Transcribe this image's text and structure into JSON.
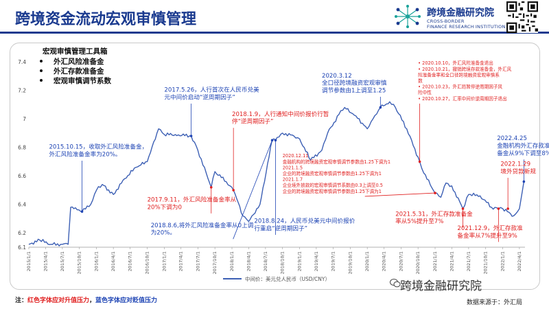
{
  "title": "跨境资金流动宏观审慎管理",
  "logo": {
    "name": "跨境金融研究院",
    "en_line1": "CROSS-BORDER",
    "en_line2": "FINANCE RESEARCH INSTITUTION"
  },
  "toolbox": {
    "heading": "宏观审慎管理工具箱",
    "items": [
      "外汇风险准备金",
      "外汇存款准备金",
      "宏观审慎调节系数"
    ]
  },
  "chart_data": {
    "type": "line",
    "series": [
      {
        "name": "中间价：美元兑人民币（USD/CNY）",
        "color": "#3c5fb4",
        "points": [
          [
            "2015-01-01",
            6.12
          ],
          [
            "2015-03-01",
            6.15
          ],
          [
            "2015-05-01",
            6.12
          ],
          [
            "2015-07-01",
            6.12
          ],
          [
            "2015-08-01",
            6.12
          ],
          [
            "2015-08-15",
            6.38
          ],
          [
            "2015-09-01",
            6.37
          ],
          [
            "2015-10-15",
            6.35
          ],
          [
            "2015-12-01",
            6.4
          ],
          [
            "2016-01-01",
            6.5
          ],
          [
            "2016-02-01",
            6.54
          ],
          [
            "2016-04-01",
            6.47
          ],
          [
            "2016-06-01",
            6.58
          ],
          [
            "2016-08-01",
            6.66
          ],
          [
            "2016-10-01",
            6.7
          ],
          [
            "2016-12-01",
            6.93
          ],
          [
            "2017-01-01",
            6.89
          ],
          [
            "2017-03-01",
            6.89
          ],
          [
            "2017-05-26",
            6.88
          ],
          [
            "2017-07-01",
            6.78
          ],
          [
            "2017-09-11",
            6.52
          ],
          [
            "2017-10-01",
            6.63
          ],
          [
            "2017-12-01",
            6.56
          ],
          [
            "2018-01-09",
            6.5
          ],
          [
            "2018-03-01",
            6.32
          ],
          [
            "2018-04-01",
            6.28
          ],
          [
            "2018-06-01",
            6.4
          ],
          [
            "2018-08-06",
            6.85
          ],
          [
            "2018-08-24",
            6.85
          ],
          [
            "2018-10-01",
            6.9
          ],
          [
            "2018-12-01",
            6.88
          ],
          [
            "2019-01-01",
            6.86
          ],
          [
            "2019-03-01",
            6.71
          ],
          [
            "2019-05-01",
            6.78
          ],
          [
            "2019-06-01",
            6.9
          ],
          [
            "2019-08-01",
            7.03
          ],
          [
            "2019-09-01",
            7.08
          ],
          [
            "2019-11-01",
            7.02
          ],
          [
            "2020-01-01",
            6.93
          ],
          [
            "2020-02-01",
            7.0
          ],
          [
            "2020-03-12",
            7.08
          ],
          [
            "2020-05-01",
            7.12
          ],
          [
            "2020-06-01",
            7.08
          ],
          [
            "2020-08-01",
            6.93
          ],
          [
            "2020-10-10",
            6.7
          ],
          [
            "2020-11-01",
            6.62
          ],
          [
            "2021-01-01",
            6.48
          ],
          [
            "2021-02-01",
            6.45
          ],
          [
            "2021-03-01",
            6.55
          ],
          [
            "2021-04-01",
            6.53
          ],
          [
            "2021-05-31",
            6.37
          ],
          [
            "2021-07-01",
            6.47
          ],
          [
            "2021-09-01",
            6.46
          ],
          [
            "2021-11-01",
            6.38
          ],
          [
            "2021-12-09",
            6.37
          ],
          [
            "2022-01-01",
            6.37
          ],
          [
            "2022-03-01",
            6.32
          ],
          [
            "2022-04-01",
            6.37
          ],
          [
            "2022-04-15",
            6.48
          ],
          [
            "2022-04-25",
            6.56
          ]
        ]
      }
    ],
    "ylim": [
      6.1,
      7.4
    ],
    "yticks": [
      6.2,
      6.4,
      6.6,
      6.8,
      7,
      7.2,
      7.4
    ],
    "xlim": [
      "2015-01-01",
      "2022-05-01"
    ],
    "xticks": [
      "2015/1/1",
      "2015/4/1",
      "2015/7/1",
      "2015/10/1",
      "2016/1/1",
      "2016/4/1",
      "2016/7/1",
      "2016/10/1",
      "2017/1/1",
      "2017/4/1",
      "2017/7/1",
      "2017/10/1",
      "2018/1/1",
      "2018/4/1",
      "2018/7/1",
      "2018/10/1",
      "2019/1/1",
      "2019/4/1",
      "2019/7/1",
      "2019/10/1",
      "2020/1/1",
      "2020/4/1",
      "2020/7/1",
      "2020/10/1",
      "2021/1/1",
      "2021/4/1",
      "2021/7/1",
      "2021/10/1",
      "2022/1/1",
      "2022/4/1"
    ],
    "ylabel_extra_tick": "6.1",
    "grid": false,
    "legend": "bottom",
    "annotations": [
      {
        "lines": [
          "2015.10.15，收取外汇风险准备金，",
          "外汇风险准备金率为20%。"
        ],
        "color": "#1e44b4",
        "date": "2015-10-15",
        "value": 6.35,
        "tx": "2015-04-20",
        "ty": 6.79
      },
      {
        "lines": [
          "2017.5.26，人行首次在人民币兑美",
          "元中间价启动“逆周期因子”"
        ],
        "color": "#1e44b4",
        "date": "2017-05-26",
        "value": 6.88,
        "tx": "2017-01-01",
        "ty": 7.19
      },
      {
        "lines": [
          "2018.1.9，人行通知中间价报价行暂",
          "停“逆周期因子”"
        ],
        "color": "#e02020",
        "date": "2018-01-09",
        "value": 6.5,
        "tx": "2018-01-01",
        "ty": 7.02
      },
      {
        "lines": [
          "2017.9.11，外汇风险准备金率从",
          "20%下调为0"
        ],
        "color": "#e02020",
        "date": "2017-09-11",
        "value": 6.52,
        "tx": "2016-10-01",
        "ty": 6.42
      },
      {
        "lines": [
          "2018.8.6,将外汇风险准备金率从0上调",
          "为20%。"
        ],
        "color": "#1e44b4",
        "date": "2018-08-06",
        "value": 6.85,
        "tx": "2016-10-20",
        "ty": 6.24
      },
      {
        "lines": [
          "2018.8.24，人民币兑美元中间价报价",
          "行重启“逆周期因子”"
        ],
        "color": "#1e44b4",
        "date": "2018-08-24",
        "value": 6.85,
        "tx": "2018-05-01",
        "ty": 6.27
      },
      {
        "lines": [
          "2020.3.12",
          "全口径跨境融资宏观审慎",
          "调节参数由1上调至1.25"
        ],
        "color": "#1e44b4",
        "date": "2020-03-12",
        "value": 7.08,
        "tx": "2019-05-01",
        "ty": 7.29
      },
      {
        "lines": [
          "2020.12.11",
          "金融机构的跨境融资宏观审慎调节参数由1.25下调为1",
          "2021.1.5",
          "企业的跨境融资宏观审慎调节参数由1.25下调为1",
          "2021.1.7",
          "企业境外放款的宏观审慎调节系数由0.3上调至0.5",
          "企业的跨境融资宏观审慎调节参数由1.25下调为1"
        ],
        "color": "#e02020",
        "date": "2021-01-01",
        "value": 6.48,
        "tx": "2018-10-01",
        "ty": 6.73,
        "small": true
      },
      {
        "lines": [
          "2020.10.10，外汇风险准备金退出",
          "2020.10.21，撤销跨境存款准备金，外汇风",
          "险准备金率和全口径跨境融资宏观审慎系",
          "数",
          "2020.10.23，外汇局暂停逆周期因子风",
          "险中性",
          "2020.10.27，汇率中间价逆周期因子退出"
        ],
        "color": "#e02020",
        "date": "2020-10-10",
        "value": 6.7,
        "tx": "2020-10-01",
        "ty": 7.38,
        "small": true,
        "bullets": [
          0,
          1,
          4,
          6
        ]
      },
      {
        "lines": [
          "2022.4.25",
          "金融机构外汇存款准",
          "备金从9%下调至8%"
        ],
        "color": "#1e44b4",
        "date": "2022-04-25",
        "value": 6.56,
        "tx": "2021-12-01",
        "ty": 6.85
      },
      {
        "lines": [
          "2022.1.29",
          "境外贷款新规"
        ],
        "color": "#e02020",
        "date": "2022-01-29",
        "value": 6.37,
        "tx": "2021-12-20",
        "ty": 6.67
      },
      {
        "lines": [
          "2021.5.31，外汇存款准备金",
          "率从5%提升至7%"
        ],
        "color": "#e02020",
        "date": "2021-05-31",
        "value": 6.37,
        "tx": "2020-06-01",
        "ty": 6.32
      },
      {
        "lines": [
          "2021.12.9，外汇存款准",
          "备金率从7%提升至9%"
        ],
        "color": "#e02020",
        "date": "2021-12-09",
        "value": 6.37,
        "tx": "2021-05-01",
        "ty": 6.22
      }
    ]
  },
  "note": {
    "prefix": "注：",
    "red": "红色字体应对升值压力",
    "sep": "，",
    "blue": "蓝色字体应对贬值压力"
  },
  "source": "数据来源于：外汇局",
  "watermark": "跨境金融研究院"
}
